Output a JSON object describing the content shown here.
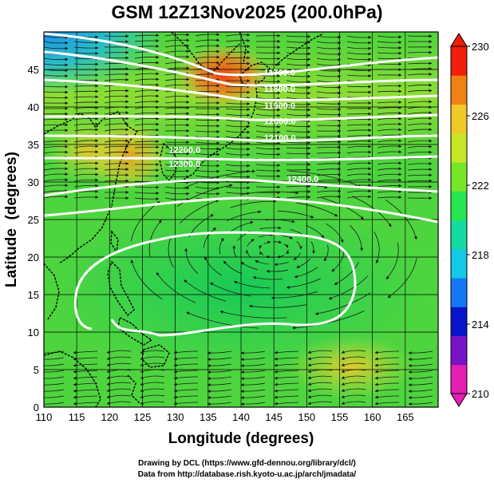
{
  "title": "GSM 12Z13Nov2025 (200.0hPa)",
  "map": {
    "xlabel": "Longitude (degrees)",
    "ylabel": "Latitude  (degrees)",
    "x_ticks": [
      "110",
      "115",
      "120",
      "125",
      "130",
      "135",
      "140",
      "145",
      "150",
      "155",
      "160",
      "165"
    ],
    "y_ticks": [
      "0",
      "5",
      "10",
      "15",
      "20",
      "25",
      "30",
      "35",
      "40",
      "45"
    ],
    "lon_range": [
      110,
      170
    ],
    "lat_range": [
      0,
      50
    ],
    "contour_labels": [
      {
        "text": "11700.0",
        "lon": 143.5,
        "lat": 44.2
      },
      {
        "text": "11800.0",
        "lon": 143.5,
        "lat": 42.0
      },
      {
        "text": "11900.0",
        "lon": 143.5,
        "lat": 39.8
      },
      {
        "text": "12000.0",
        "lon": 143.5,
        "lat": 37.7
      },
      {
        "text": "12100.0",
        "lon": 143.5,
        "lat": 35.5
      },
      {
        "text": "12200.0",
        "lon": 129.0,
        "lat": 33.9
      },
      {
        "text": "12300.0",
        "lon": 129.0,
        "lat": 32.0
      },
      {
        "text": "12400.0",
        "lon": 147.0,
        "lat": 30.0
      }
    ]
  },
  "colorbar": {
    "labels": [
      "230",
      "226",
      "222",
      "218",
      "214",
      "210"
    ],
    "range": [
      210,
      230
    ],
    "colors": [
      "#e61eb4",
      "#7814c8",
      "#0a14c8",
      "#1478f0",
      "#14c8e6",
      "#14dca0",
      "#28e650",
      "#78e628",
      "#c8e628",
      "#f0c828",
      "#f08214",
      "#f01e0a"
    ]
  },
  "credits": {
    "line1": "Drawing by DCL (https://www.gfd-dennou.org/library/dcl/)",
    "line2": "Data from http://database.rish.kyoto-u.ac.jp/arch/jmadata/"
  }
}
